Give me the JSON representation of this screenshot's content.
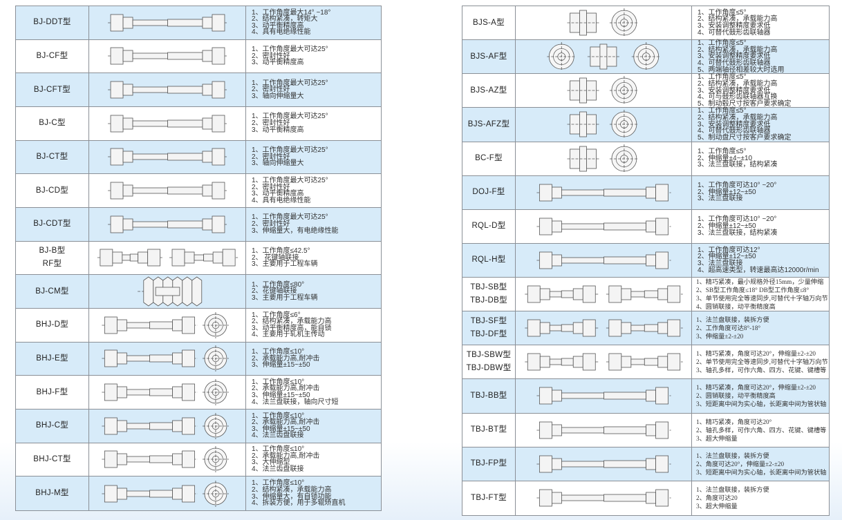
{
  "left_table": [
    {
      "model": [
        "BJ-DDT型"
      ],
      "drawing": "shaft-icon",
      "features": [
        "1、工作角度最大14° ~18°",
        "2、结构紧凑，转矩大",
        "3、动平衡精度高",
        "4、具有电绝缘性能"
      ]
    },
    {
      "model": [
        "BJ-CF型"
      ],
      "drawing": "shaft-icon",
      "features": [
        "1、工作角度最大可达25°",
        "2、密封性好",
        "3、动平衡精度高"
      ]
    },
    {
      "model": [
        "BJ-CFT型"
      ],
      "drawing": "shaft-icon",
      "features": [
        "1、工作角度最大可达25°",
        "2、密封性好",
        "3、轴向伸缩量大"
      ]
    },
    {
      "model": [
        "BJ-C型"
      ],
      "drawing": "shaft-icon",
      "features": [
        "1、工作角度最大可达25°",
        "2、密封性好",
        "3、动平衡精度高"
      ]
    },
    {
      "model": [
        "BJ-CT型"
      ],
      "drawing": "shaft-icon",
      "features": [
        "1、工作角度最大可达25°",
        "2、密封性好",
        "3、轴向伸缩量大"
      ]
    },
    {
      "model": [
        "BJ-CD型"
      ],
      "drawing": "shaft-icon",
      "features": [
        "1、工作角度最大可达25°",
        "2、密封性好",
        "3、动平衡精度高",
        "4、具有电绝缘性能"
      ]
    },
    {
      "model": [
        "BJ-CDT型"
      ],
      "drawing": "shaft-icon",
      "features": [
        "1、工作角度最大可达25°",
        "2、密封性好",
        "3、伸缩量大，有电绝缘性能"
      ]
    },
    {
      "model": [
        "BJ-B型",
        "RF型"
      ],
      "drawing": "pair-icon",
      "features": [
        "1、工作角度≤42.5°",
        "2、 花键轴联接",
        "3、主要用于工程车辆"
      ]
    },
    {
      "model": [
        "BJ-CM型"
      ],
      "drawing": "boot-icon",
      "features": [
        "1、工作角度≤80°",
        "2、花键轴联接",
        "3、主要用于工程车辆"
      ]
    },
    {
      "model": [
        "BHJ-D型"
      ],
      "drawing": "shaft-circle-icon",
      "features": [
        "1、工作角度≤6°",
        "2、结构紧凑，承载能力高",
        "3、动平衡精度高，能自锁",
        "4、主要用于轧机主传动"
      ]
    },
    {
      "model": [
        "BHJ-E型"
      ],
      "drawing": "shaft-circle-icon",
      "features": [
        "1、工作角度≤10°",
        "2、承载能力高,耐冲击",
        "3、伸缩量±15~±50"
      ]
    },
    {
      "model": [
        "BHJ-F型"
      ],
      "drawing": "shaft-circle-icon",
      "features": [
        "1、工作角度≤10°",
        "2、承载能力高,耐冲击",
        "3、伸缩量±15~±50",
        "4、法兰盘联接，轴向尺寸短"
      ]
    },
    {
      "model": [
        "BHJ-C型"
      ],
      "drawing": "shaft-circle-icon",
      "features": [
        "1、工作角度≤10°",
        "2、承载能力高,耐冲击",
        "3、伸缩量±15~±50",
        "4、法兰齿盘联接"
      ]
    },
    {
      "model": [
        "BHJ-CT型"
      ],
      "drawing": "shaft-circle-icon",
      "features": [
        "1、工作角度≤10°",
        "2、承载能力高,耐冲击",
        "3、大伸缩型",
        "4、法兰齿盘联接"
      ]
    },
    {
      "model": [
        "BHJ-M型"
      ],
      "drawing": "shaft-circle-icon",
      "features": [
        "1、工作角度≤10°",
        "2、结构紧凑，承载能力高",
        "3、伸缩量大，有自锁功能",
        "4、拆装方便，用于多辊矫直机"
      ]
    }
  ],
  "right_table": [
    {
      "model": [
        "BJS-A型"
      ],
      "drawing": "drum-circle-icon",
      "features": [
        "1、工作角度≤5°",
        "2、结构紧凑，承载能力高",
        "3、安装调整精度要求低",
        "4、可替代鼓形齿联轴器"
      ]
    },
    {
      "model": [
        "BJS-AF型"
      ],
      "drawing": "circle-drum-circle-icon",
      "features": [
        "1、工作角度≤5°",
        "2、结构紧凑，承载能力高",
        "3、安装调整精度要求低",
        "4、可替代鼓形齿联轴器",
        "5、两端轴径相差较大时选用"
      ]
    },
    {
      "model": [
        "BJS-AZ型"
      ],
      "drawing": "drum-circle-icon",
      "features": [
        "1、工作角度≤5°",
        "2、结构紧凑，承载能力高",
        "3、安装调整精度要求低",
        "4、可与鼓形齿联轴器互换",
        "5、制动毂尺寸按客户要求确定"
      ]
    },
    {
      "model": [
        "BJS-AFZ型"
      ],
      "drawing": "drum-circle-icon",
      "features": [
        "1、工作角度≤5°",
        "2、结构紧凑，承载能力高",
        "3、安装调整精度要求低",
        "4、可替代鼓形齿联轴器",
        "5、制动盘尺寸按客户要求确定"
      ]
    },
    {
      "model": [
        "BC-F型"
      ],
      "drawing": "drum-circle-icon",
      "features": [
        "1、工作角度≤5°",
        "2、伸缩量±4~±10",
        "3、法兰盘联接，结构紧凑"
      ]
    },
    {
      "model": [
        "DOJ-F型"
      ],
      "drawing": "shaft-icon",
      "features": [
        "1、工作角度可达10° ~20°",
        "2、伸缩量±12~±50",
        "3、法兰盘联接"
      ]
    },
    {
      "model": [
        "RQL-D型"
      ],
      "drawing": "shaft-icon",
      "features": [
        "1、工作角度可达10° ~20°",
        "2、伸缩量±12~±50",
        "3、法兰盘联接，结构紧凑"
      ]
    },
    {
      "model": [
        "RQL-H型"
      ],
      "drawing": "shaft-icon",
      "features": [
        "1、工作角度可达12°",
        "2、伸缩量±12~±50",
        "3、法兰盘联接",
        "4、超高速类型，转速最高达12000r/min"
      ]
    },
    {
      "model": [
        "TBJ-SB型",
        "TBJ-DB型"
      ],
      "drawing": "pair-icon",
      "serif": true,
      "features": [
        "1、精巧紧凑，最小规格外径15mm，少量伸缩",
        "2、SB型工作角度≤18° DB型工作角度≤8°",
        "3、单节使用完全等速同步,可替代十字轴万向节",
        "4、圆销联接，动平衡精度高"
      ]
    },
    {
      "model": [
        "TBJ-SF型",
        "TBJ-DF型"
      ],
      "drawing": "pair-icon",
      "serif": true,
      "features": [
        "1、法兰盘联接，装拆方便",
        "2、工作角度可达8°-18°",
        "3、伸缩量±2-±20"
      ]
    },
    {
      "model": [
        "TBJ-SBW型",
        "TBJ-DBW型"
      ],
      "drawing": "pair-icon",
      "serif": true,
      "features": [
        "1、精巧紧凑，角度可达20°，伸缩量±2-±20",
        "2、单节使用完全等速同步,可替代十字轴万向节",
        "3、轴孔多样，可作六角、四方、花键、键槽等"
      ]
    },
    {
      "model": [
        "TBJ-BB型"
      ],
      "drawing": "shaft-icon",
      "serif": true,
      "features": [
        "1、精巧紧凑，角度可达20°，伸缩量±2-±20",
        "2、圆销联接，动平衡精度高",
        "3、短距离中间为实心轴，长距离中间为管状轴"
      ]
    },
    {
      "model": [
        "TBJ-BT型"
      ],
      "drawing": "shaft-icon",
      "serif": true,
      "features": [
        "1、精巧紧凑，角度可达20°",
        "2、轴孔多样，可作六角、四方、花键、键槽等",
        "3、超大伸缩量"
      ]
    },
    {
      "model": [
        "TBJ-FP型"
      ],
      "drawing": "shaft-icon",
      "serif": true,
      "features": [
        "1、法兰盘联接，装拆方便",
        "2、角度可达20°，伸缩量±2-±20",
        "3、短距离中间为实心轴，长距离中间为管状轴"
      ]
    },
    {
      "model": [
        "TBJ-FT型"
      ],
      "drawing": "shaft-icon",
      "serif": true,
      "features": [
        "1、法兰盘联接，装拆方便",
        "2、角度可达20",
        "3、超大伸缩量"
      ]
    }
  ],
  "colors": {
    "row_alt": "#d7ebf9",
    "border": "#8a8f96",
    "line_art": "#555555"
  }
}
